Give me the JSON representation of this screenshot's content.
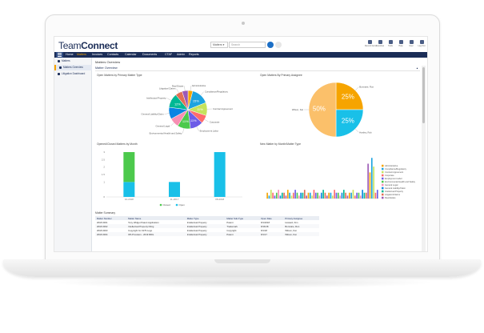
{
  "app": {
    "logo_team": "Team",
    "logo_connect": "Connect",
    "search_scope": "Matters ▾",
    "search_placeholder": "Search",
    "toolbar": [
      {
        "label": "Recent Items",
        "icon": "clock-icon"
      },
      {
        "label": "Favorites",
        "icon": "star-icon"
      },
      {
        "label": "Tools",
        "icon": "tools-icon"
      },
      {
        "label": "Help",
        "icon": "help-icon"
      },
      {
        "label": "User",
        "icon": "user-icon"
      },
      {
        "label": "Log Out",
        "icon": "logout-icon"
      }
    ]
  },
  "nav": {
    "items": [
      "Home",
      "Matters",
      "Invoices",
      "Contacts",
      "Calendar",
      "Documents",
      "CTAF",
      "Admin",
      "Reports"
    ],
    "active": "Matters"
  },
  "sidebar": {
    "items": [
      "Matters",
      "Matters Overview",
      "Litigation Dashboard"
    ],
    "active": "Matters Overview"
  },
  "page": {
    "title": "Matters Overview",
    "panel_title": "Matter Overview",
    "collapse_glyph": "▲"
  },
  "colors": {
    "navy": "#1b2d57",
    "accent": "#f6a400",
    "green": "#4cc94c",
    "cyan": "#19c0e8"
  },
  "chart_data": [
    {
      "type": "pie",
      "title": "Open Matters by Primary Matter Type",
      "labels": [
        "Administrative",
        "Compliance/Regulatory",
        "Contract Agreement",
        "Corporate",
        "Employment Labor",
        "Environmental Health and Safety",
        "General Legal",
        "General Liability/Claim",
        "Intellectual Property",
        "Litigation/Claims",
        "Real Estate"
      ],
      "values": [
        4,
        15,
        11,
        7,
        11,
        11,
        8,
        10,
        12,
        6,
        5
      ],
      "data_labels": [
        "",
        "15%",
        "11%",
        "",
        "11%",
        "11%",
        "",
        "",
        "12%",
        "",
        ""
      ],
      "colors": [
        "#f6a400",
        "#1ca3e0",
        "#c5e35d",
        "#ff6b6b",
        "#6c5ce7",
        "#4cc94c",
        "#f78fb3",
        "#0984e3",
        "#00b894",
        "#e17055",
        "#9b59b6"
      ]
    },
    {
      "type": "pie",
      "title": "Open Matters By Primary Assignee",
      "labels": [
        "Bonnaire, Ron",
        "Hartley, Rob",
        "Wilson, Kat"
      ],
      "values": [
        25,
        25,
        50
      ],
      "data_labels": [
        "25%",
        "25%",
        "50%"
      ],
      "colors": [
        "#f6a400",
        "#19c0e8",
        "#fbc06a"
      ]
    },
    {
      "type": "bar",
      "title": "Opened/Closed Matters by Month",
      "categories": [
        "10-2018",
        "11-2017",
        "08-2018"
      ],
      "series": [
        {
          "name": "Closed",
          "values": [
            2,
            0,
            0
          ],
          "color": "#4cc94c"
        },
        {
          "name": "Open",
          "values": [
            1,
            1,
            3
          ],
          "color": "#19c0e8"
        }
      ],
      "ylim": [
        0,
        3
      ],
      "yticks": [
        "0",
        "1",
        "1.5",
        "2",
        "2.5",
        "3"
      ]
    },
    {
      "type": "bar",
      "title": "New Matter by Month/Matter Type",
      "legend": [
        "Administrative",
        "Compliance/Regulatory",
        "Contract Agreement",
        "Corporate",
        "Employment Labor",
        "Environmental Health and Safety",
        "General Legal",
        "General Liability/Claim",
        "Intellectual Property",
        "Litigation/Claims",
        "Real Estate"
      ],
      "legend_colors": [
        "#f6a400",
        "#1ca3e0",
        "#c5e35d",
        "#ff6b6b",
        "#6c5ce7",
        "#4cc94c",
        "#f78fb3",
        "#0984e3",
        "#00b894",
        "#e17055",
        "#9b59b6"
      ],
      "values": [
        2,
        1,
        3,
        2,
        1,
        2,
        3,
        1,
        2,
        2,
        1,
        3,
        2,
        1,
        2,
        3,
        2,
        1,
        2,
        2,
        3,
        1,
        2,
        2,
        1,
        3,
        2,
        2,
        1,
        2,
        3,
        2,
        1,
        2,
        2,
        1,
        3,
        2,
        2,
        1,
        2,
        3,
        2,
        1,
        2,
        2,
        3,
        1,
        2,
        2,
        1,
        3,
        2,
        2,
        12,
        9,
        14,
        11,
        2,
        3
      ],
      "ylim": [
        0,
        16
      ]
    }
  ],
  "summary": {
    "title": "Matter Summary",
    "columns": [
      "Matter Number",
      "Matter Name",
      "Matter Type",
      "Matter Sub-Type",
      "Open Date",
      "Primary Assignee"
    ],
    "rows": [
      [
        "2018-0001",
        "Tony Widget Patent Application",
        "Intellectual Property",
        "Patent",
        "8/1/2018",
        "Howard, Kim"
      ],
      [
        "2018-0002",
        "Intellectual Property Filing",
        "Intellectual Property",
        "Trademark",
        "8/16/18",
        "Bonnaire, Ron"
      ],
      [
        "2018-0003",
        "Copyright for 1979 Logo",
        "Intellectual Property",
        "Copyright",
        "8/1/18",
        "Wilson, Kat"
      ],
      [
        "2018-0004",
        "IPA Provision - 2019 RDG",
        "Intellectual Property",
        "Patent",
        "8/1/17",
        "Wilson, Kat"
      ]
    ]
  }
}
